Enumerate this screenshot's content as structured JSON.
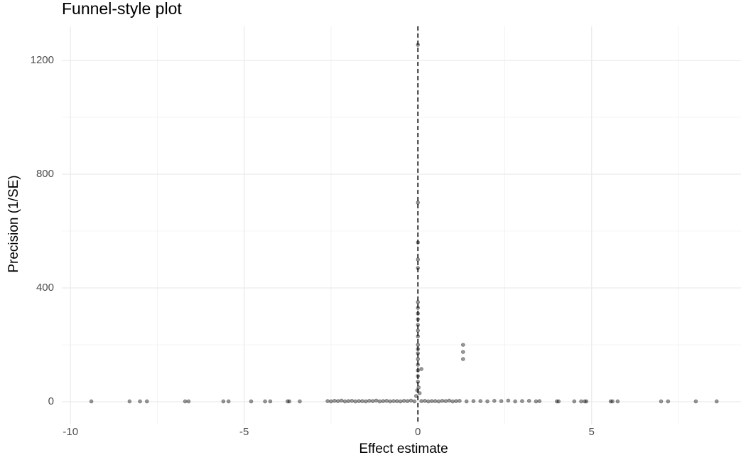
{
  "chart_data": {
    "type": "scatter",
    "title": "Funnel-style plot",
    "x_label": "Effect estimate",
    "y_label": "Precision (1/SE)",
    "xlim": [
      -10.25,
      9.3
    ],
    "ylim": [
      -80,
      1320
    ],
    "xticks": [
      -10,
      -5,
      0,
      5
    ],
    "yticks": [
      0,
      400,
      800,
      1200
    ],
    "x_minor_ticks": [
      -7.5,
      -2.5,
      2.5,
      7.5
    ],
    "y_minor_ticks": [
      200,
      600,
      1000
    ],
    "grid": true,
    "reference_line_x": 0,
    "color": "#000000",
    "opacity": 0.4,
    "x": [
      -9.4,
      -8.3,
      -8.0,
      -7.8,
      -6.7,
      -6.6,
      -5.6,
      -5.45,
      -4.8,
      -4.4,
      -4.25,
      -3.75,
      -3.7,
      -3.4,
      -2.6,
      -2.5,
      -2.4,
      -2.3,
      -2.2,
      -2.1,
      -2.0,
      -1.9,
      -1.8,
      -1.7,
      -1.6,
      -1.5,
      -1.4,
      -1.3,
      -1.2,
      -1.1,
      -1.0,
      -0.9,
      -0.8,
      -0.7,
      -0.6,
      -0.5,
      -0.4,
      -0.3,
      -0.2,
      -0.1,
      0.1,
      0.2,
      0.3,
      0.4,
      0.5,
      0.6,
      0.7,
      0.8,
      0.9,
      1.0,
      1.1,
      1.2,
      1.4,
      1.6,
      1.8,
      2.0,
      2.2,
      2.4,
      2.6,
      2.8,
      3.0,
      3.2,
      3.4,
      3.5,
      0,
      0,
      0,
      0,
      0,
      0,
      0,
      0,
      0,
      0,
      0,
      0,
      0,
      0,
      0,
      0,
      0,
      0,
      0,
      0,
      0.02,
      -0.02,
      0.05,
      -0.05,
      1.3,
      1.3,
      1.3,
      0.1,
      4.0,
      4.05,
      4.5,
      4.7,
      4.8,
      4.85,
      5.55,
      5.6,
      5.75,
      7.0,
      7.2,
      8.0,
      8.6
    ],
    "y": [
      1,
      1,
      1,
      1,
      1,
      1,
      1,
      1,
      1,
      1,
      1,
      1,
      1,
      1,
      2,
      1,
      3,
      2,
      4,
      1,
      2,
      3,
      1,
      2,
      2,
      1,
      3,
      2,
      4,
      1,
      2,
      3,
      1,
      2,
      2,
      1,
      3,
      2,
      4,
      1,
      2,
      3,
      1,
      2,
      2,
      1,
      3,
      2,
      4,
      1,
      2,
      3,
      1,
      2,
      2,
      1,
      3,
      2,
      4,
      1,
      2,
      3,
      1,
      2,
      1255,
      700,
      560,
      500,
      470,
      350,
      330,
      310,
      290,
      270,
      250,
      230,
      200,
      185,
      170,
      150,
      130,
      110,
      90,
      70,
      50,
      40,
      30,
      20,
      200,
      175,
      150,
      115,
      1,
      1,
      1,
      1,
      1,
      1,
      1,
      1,
      1,
      1,
      1,
      1,
      1
    ]
  }
}
